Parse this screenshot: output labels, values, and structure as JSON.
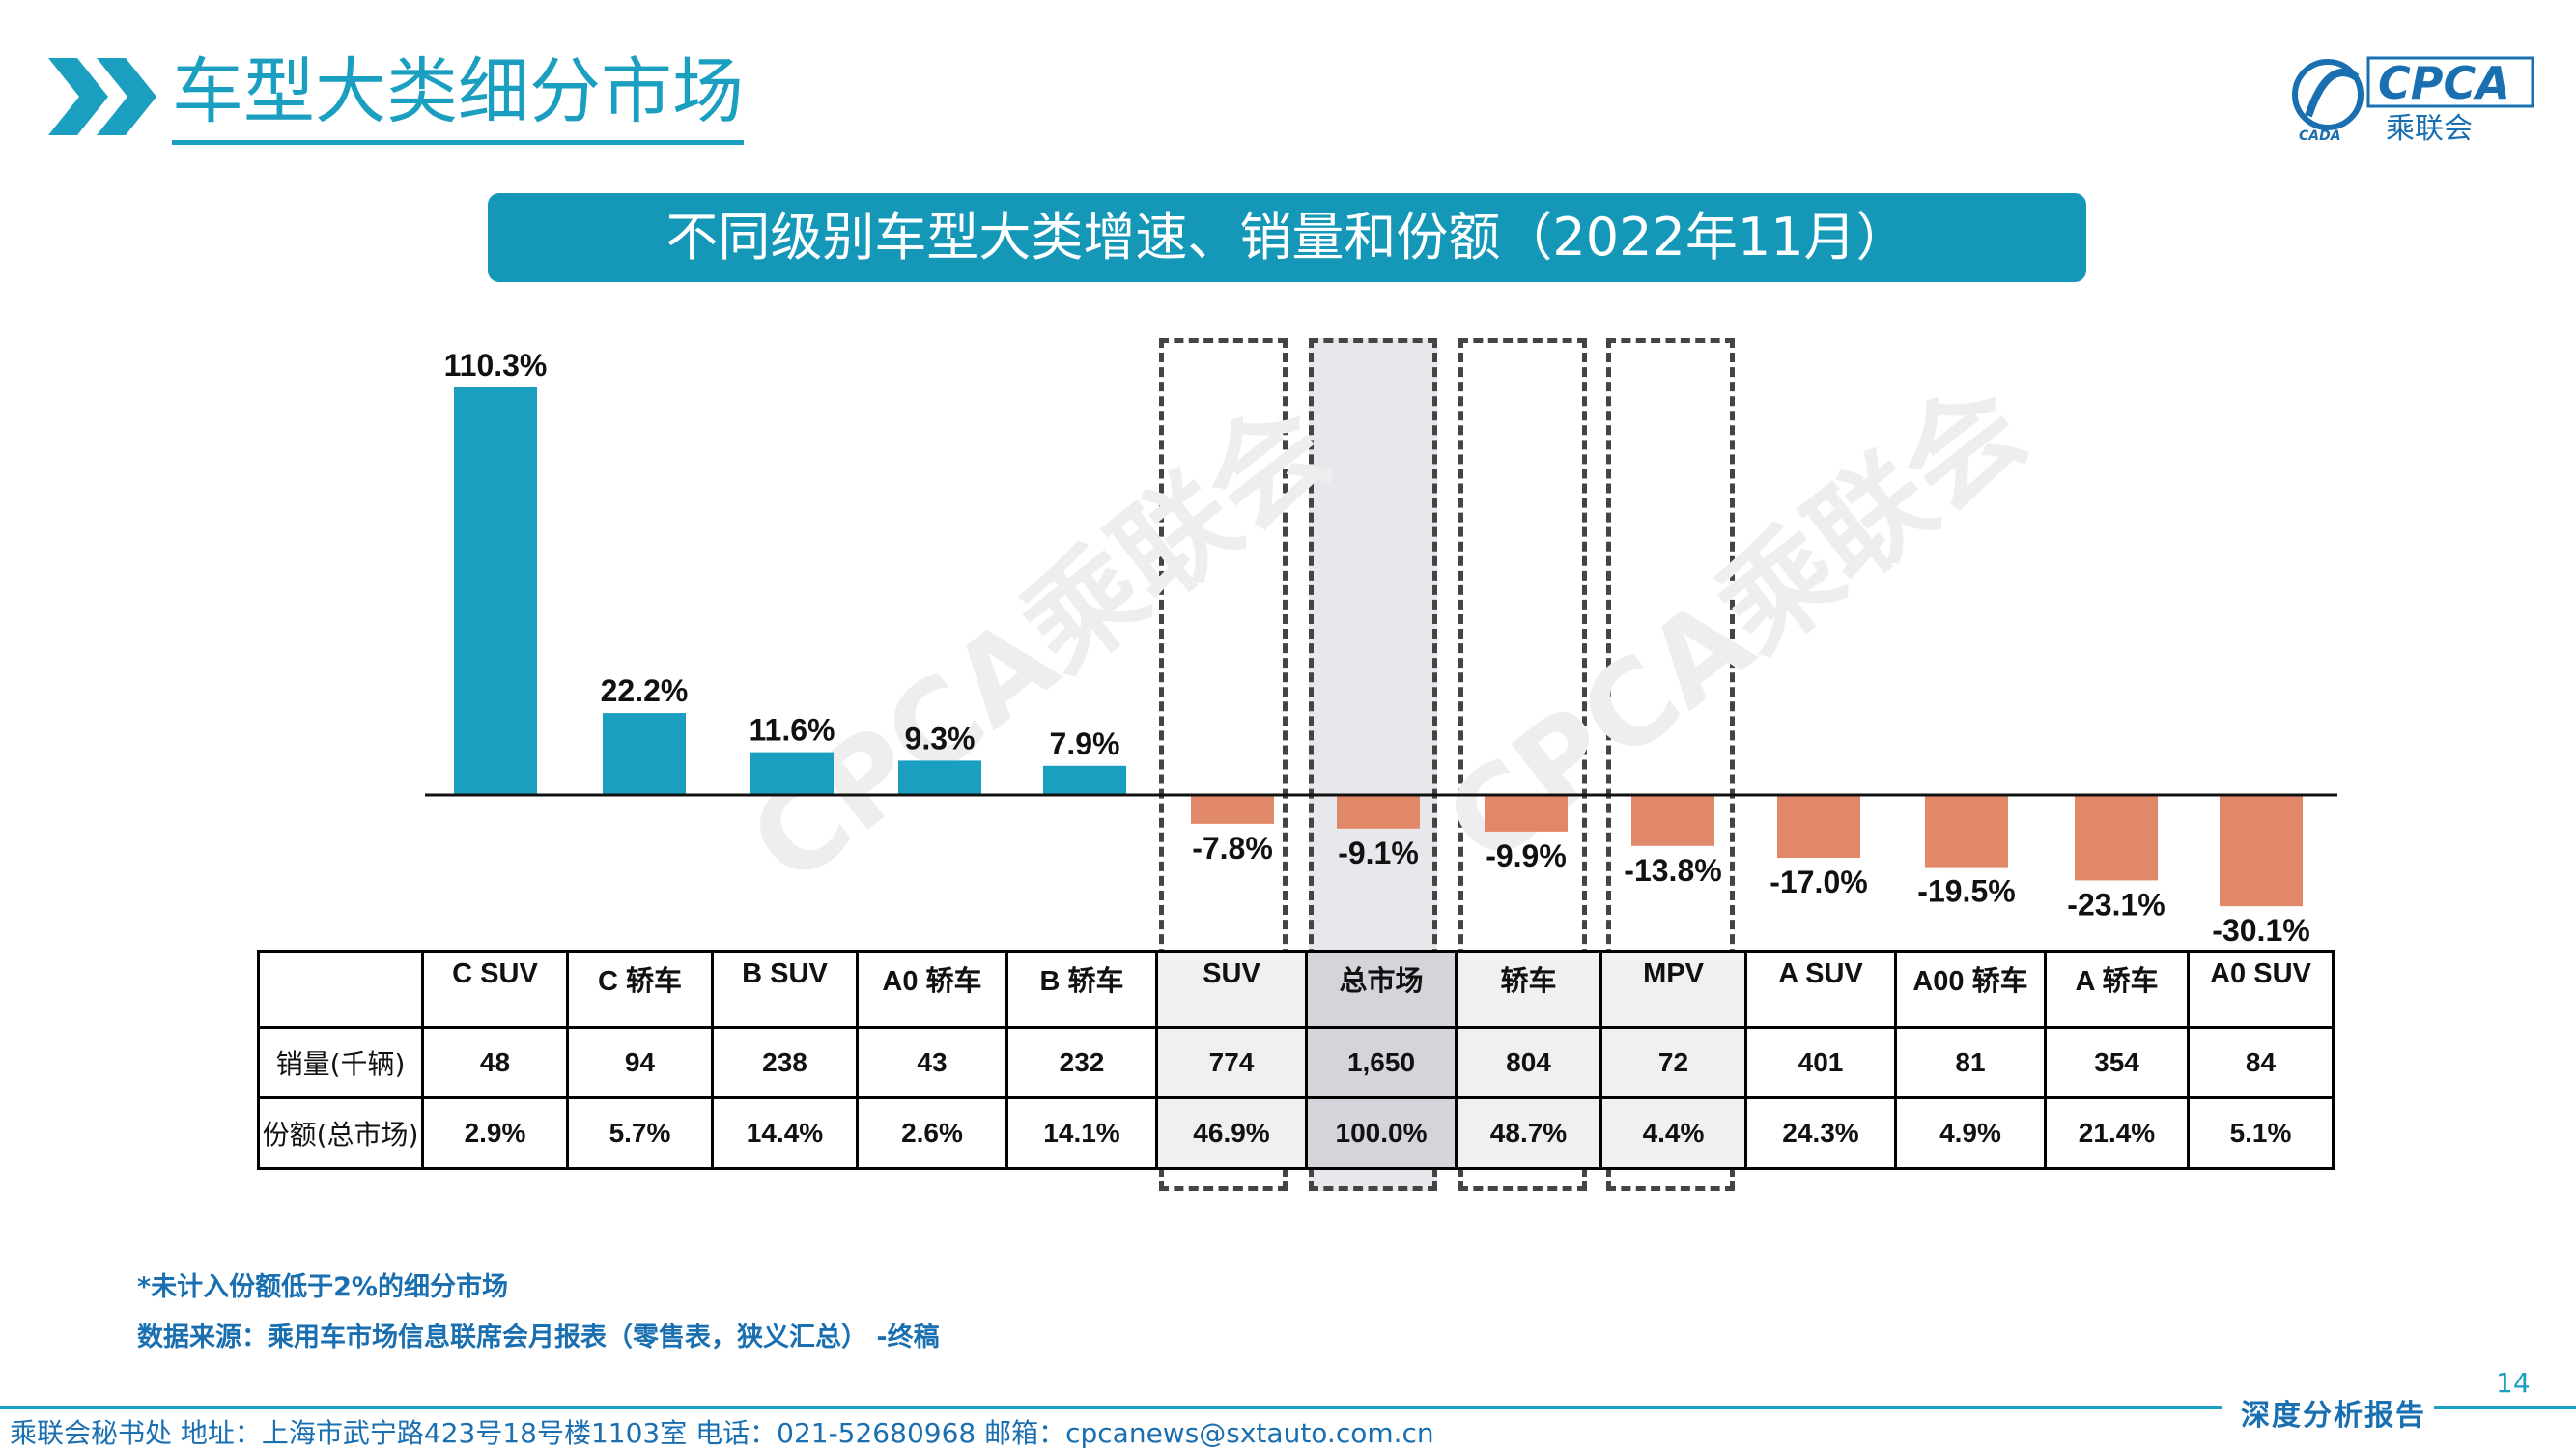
{
  "header": {
    "title": "车型大类细分市场",
    "logo_text": "CPCA",
    "logo_sub": "乘联会",
    "logo_small": "CADA"
  },
  "banner": "不同级别车型大类增速、销量和份额（2022年11月）",
  "watermark": "CPCA乘联会",
  "colors": {
    "positive_bar": "#1a9fc0",
    "negative_bar": "#e08868",
    "accent": "#1a9fc0"
  },
  "chart_data": {
    "type": "bar",
    "categories": [
      "C SUV",
      "C 轿车",
      "B SUV",
      "A0 轿车",
      "B 轿车",
      "SUV",
      "总市场",
      "轿车",
      "MPV",
      "A SUV",
      "A00 轿车",
      "A 轿车",
      "A0 SUV"
    ],
    "values": [
      110.3,
      22.2,
      11.6,
      9.3,
      7.9,
      -7.8,
      -9.1,
      -9.9,
      -13.8,
      -17.0,
      -19.5,
      -23.1,
      -30.1
    ],
    "value_labels": [
      "110.3%",
      "22.2%",
      "11.6%",
      "9.3%",
      "7.9%",
      "-7.8%",
      "-9.1%",
      "-9.9%",
      "-13.8%",
      "-17.0%",
      "-19.5%",
      "-23.1%",
      "-30.1%"
    ],
    "highlighted": [
      "SUV",
      "总市场",
      "轿车",
      "MPV"
    ],
    "emphasized": "总市场"
  },
  "table": {
    "header_blank": "",
    "rows": [
      {
        "label": "销量(千辆)",
        "values": [
          "48",
          "94",
          "238",
          "43",
          "232",
          "774",
          "1,650",
          "804",
          "72",
          "401",
          "81",
          "354",
          "84"
        ]
      },
      {
        "label": "份额(总市场)",
        "values": [
          "2.9%",
          "5.7%",
          "14.4%",
          "2.6%",
          "14.1%",
          "46.9%",
          "100.0%",
          "48.7%",
          "4.4%",
          "24.3%",
          "4.9%",
          "21.4%",
          "5.1%"
        ]
      }
    ]
  },
  "footnotes": {
    "note": "*未计入份额低于2%的细分市场",
    "source": "数据来源：乘用车市场信息联席会月报表（零售表，狭义汇总） -终稿"
  },
  "footer": {
    "page_number": "14",
    "contact": "乘联会秘书处   地址：上海市武宁路423号18号楼1103室  电话：021-52680968   邮箱：cpcanews@sxtauto.com.cn",
    "tag": "深度分析报告"
  }
}
